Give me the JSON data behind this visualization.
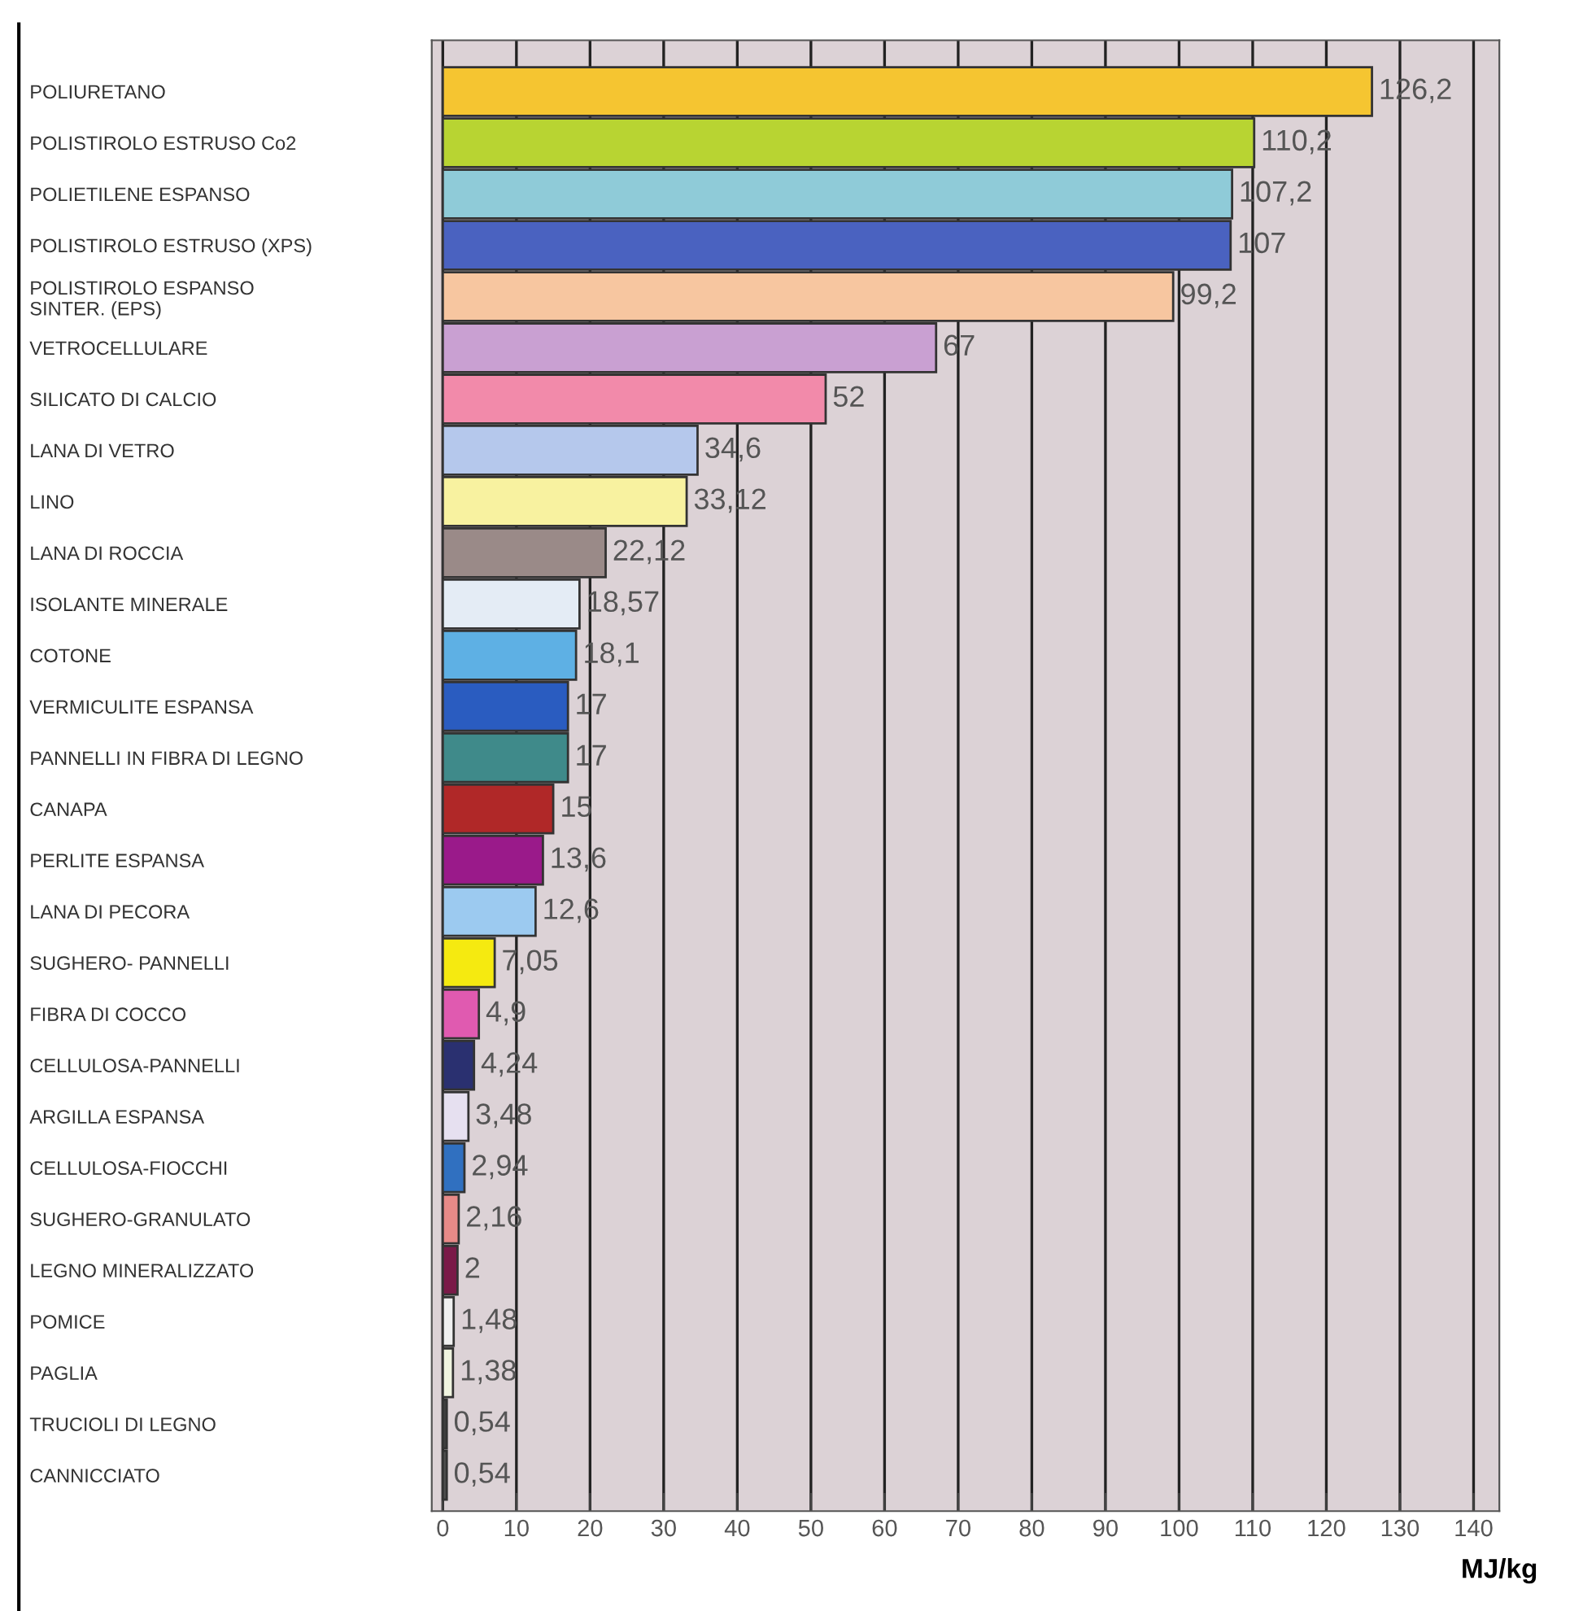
{
  "chart_data": {
    "type": "bar",
    "orientation": "horizontal",
    "xlabel": "MJ/kg",
    "categories": [
      "POLIURETANO",
      "POLISTIROLO ESTRUSO Co2",
      "POLIETILENE ESPANSO",
      "POLISTIROLO ESTRUSO (XPS)",
      "POLISTIROLO ESPANSO\nSINTER. (EPS)",
      "VETROCELLULARE",
      "SILICATO DI CALCIO",
      "LANA DI VETRO",
      "LINO",
      "LANA DI ROCCIA",
      "ISOLANTE MINERALE",
      "COTONE",
      "VERMICULITE ESPANSA",
      "PANNELLI IN FIBRA DI LEGNO",
      "CANAPA",
      "PERLITE ESPANSA",
      "LANA DI PECORA",
      "SUGHERO- PANNELLI",
      "FIBRA DI COCCO",
      "CELLULOSA-PANNELLI",
      "ARGILLA ESPANSA",
      "CELLULOSA-FIOCCHI",
      "SUGHERO-GRANULATO",
      "LEGNO MINERALIZZATO",
      "POMICE",
      "PAGLIA",
      "TRUCIOLI DI LEGNO",
      "CANNICCIATO"
    ],
    "values": [
      126.2,
      110.2,
      107.2,
      107,
      99.2,
      67,
      52,
      34.6,
      33.12,
      22.12,
      18.57,
      18.1,
      17,
      17,
      15,
      13.6,
      12.6,
      7.05,
      4.9,
      4.24,
      3.48,
      2.94,
      2.16,
      2,
      1.48,
      1.38,
      0.54,
      0.54
    ],
    "value_labels": [
      "126,2",
      "110,2",
      "107,2",
      "107",
      "99,2",
      "67",
      "52",
      "34,6",
      "33,12",
      "22,12",
      "18,57",
      "18,1",
      "17",
      "17",
      "15",
      "13,6",
      "12,6",
      "7,05",
      "4,9",
      "4,24",
      "3,48",
      "2,94",
      "2,16",
      "2",
      "1,48",
      "1,38",
      "0,54",
      "0,54"
    ],
    "colors": [
      "#f5c531",
      "#b8d432",
      "#8fcbd8",
      "#4a62c0",
      "#f7c6a0",
      "#c9a0d2",
      "#f28aaa",
      "#b5c8ec",
      "#f8f2a0",
      "#9a8a88",
      "#e4ecf5",
      "#5eb0e4",
      "#2a5cc0",
      "#3f8a8a",
      "#b02828",
      "#9a1a8a",
      "#9ccaf0",
      "#f5ea10",
      "#e05ab0",
      "#2a3070",
      "#e6e0f0",
      "#3070c0",
      "#e88a88",
      "#7a1a48",
      "#f0f0f0",
      "#f0f4e0",
      "#404040",
      "#505050"
    ],
    "xlim": [
      -1.5,
      143.5
    ],
    "xticks": [
      0,
      10,
      20,
      30,
      40,
      50,
      60,
      70,
      80,
      90,
      100,
      110,
      120,
      130,
      140
    ],
    "grid": "x"
  }
}
